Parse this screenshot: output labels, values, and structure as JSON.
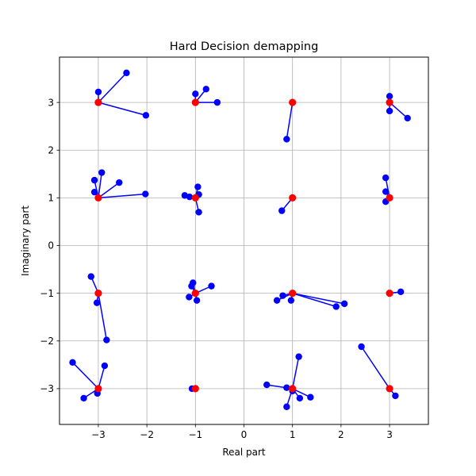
{
  "chart_data": {
    "type": "scatter",
    "title": "Hard Decision demapping",
    "xlabel": "Real part",
    "ylabel": "Imaginary part",
    "xlim": [
      -3.8,
      3.8
    ],
    "ylim": [
      -3.75,
      3.95
    ],
    "xticks": [
      -3,
      -2,
      -1,
      0,
      1,
      2,
      3
    ],
    "xtick_labels": [
      "−3",
      "−2",
      "−1",
      "0",
      "1",
      "2",
      "3"
    ],
    "yticks": [
      -3,
      -2,
      -1,
      0,
      1,
      2,
      3
    ],
    "ytick_labels": [
      "−3",
      "−2",
      "−1",
      "0",
      "1",
      "2",
      "3"
    ],
    "grid": true,
    "colors": {
      "received": "#0000ff",
      "constellation": "#ff0000",
      "grid": "#b0b0b0"
    },
    "groups": [
      {
        "constellation_point": [
          -3,
          3
        ],
        "received": [
          [
            -3.0,
            3.22
          ],
          [
            -2.42,
            3.62
          ],
          [
            -2.02,
            2.73
          ]
        ]
      },
      {
        "constellation_point": [
          -1,
          3
        ],
        "received": [
          [
            -1.0,
            3.18
          ],
          [
            -0.78,
            3.28
          ],
          [
            -0.55,
            3.0
          ]
        ]
      },
      {
        "constellation_point": [
          1,
          3
        ],
        "received": [
          [
            0.88,
            2.23
          ]
        ]
      },
      {
        "constellation_point": [
          3,
          3
        ],
        "received": [
          [
            3.0,
            3.13
          ],
          [
            3.0,
            2.82
          ],
          [
            3.37,
            2.67
          ]
        ]
      },
      {
        "constellation_point": [
          -3,
          1
        ],
        "received": [
          [
            -3.08,
            1.37
          ],
          [
            -2.93,
            1.53
          ],
          [
            -3.08,
            1.12
          ],
          [
            -2.57,
            1.32
          ],
          [
            -2.03,
            1.08
          ]
        ]
      },
      {
        "constellation_point": [
          -1,
          1
        ],
        "received": [
          [
            -1.22,
            1.05
          ],
          [
            -1.12,
            1.02
          ],
          [
            -0.95,
            1.23
          ],
          [
            -0.93,
            1.07
          ],
          [
            -0.93,
            0.7
          ]
        ]
      },
      {
        "constellation_point": [
          1,
          1
        ],
        "received": [
          [
            0.78,
            0.73
          ]
        ]
      },
      {
        "constellation_point": [
          3,
          1
        ],
        "received": [
          [
            2.92,
            1.42
          ],
          [
            2.92,
            1.13
          ],
          [
            2.92,
            0.92
          ]
        ]
      },
      {
        "constellation_point": [
          -3,
          -1
        ],
        "received": [
          [
            -3.15,
            -0.65
          ],
          [
            -3.03,
            -1.2
          ],
          [
            -2.83,
            -1.98
          ]
        ]
      },
      {
        "constellation_point": [
          -1,
          -1
        ],
        "received": [
          [
            -1.05,
            -0.78
          ],
          [
            -1.08,
            -0.85
          ],
          [
            -1.13,
            -1.08
          ],
          [
            -0.97,
            -1.15
          ],
          [
            -0.67,
            -0.85
          ]
        ]
      },
      {
        "constellation_point": [
          1,
          -1
        ],
        "received": [
          [
            0.68,
            -1.15
          ],
          [
            0.8,
            -1.05
          ],
          [
            0.97,
            -1.15
          ],
          [
            1.9,
            -1.28
          ],
          [
            2.07,
            -1.22
          ]
        ]
      },
      {
        "constellation_point": [
          3,
          -1
        ],
        "received": [
          [
            3.23,
            -0.97
          ]
        ]
      },
      {
        "constellation_point": [
          -3,
          -3
        ],
        "received": [
          [
            -3.53,
            -2.45
          ],
          [
            -3.3,
            -3.2
          ],
          [
            -3.02,
            -3.1
          ],
          [
            -2.87,
            -2.52
          ]
        ]
      },
      {
        "constellation_point": [
          -1,
          -3
        ],
        "received": [
          [
            -1.07,
            -3.0
          ]
        ]
      },
      {
        "constellation_point": [
          1,
          -3
        ],
        "received": [
          [
            0.47,
            -2.92
          ],
          [
            0.88,
            -2.98
          ],
          [
            0.88,
            -3.38
          ],
          [
            1.0,
            -3.05
          ],
          [
            1.13,
            -2.33
          ],
          [
            1.15,
            -3.2
          ],
          [
            1.37,
            -3.18
          ]
        ]
      },
      {
        "constellation_point": [
          3,
          -3
        ],
        "received": [
          [
            2.42,
            -2.12
          ],
          [
            3.12,
            -3.15
          ]
        ]
      }
    ]
  }
}
